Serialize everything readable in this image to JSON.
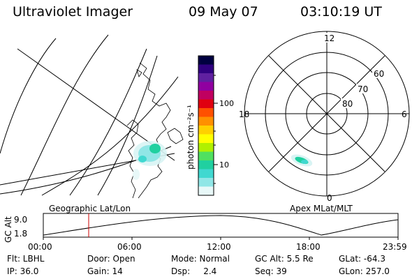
{
  "header": {
    "instrument": "Ultraviolet Imager",
    "date": "09 May 07",
    "time": "03:10:19 UT"
  },
  "colorbar": {
    "label": "photon cm⁻²s⁻¹",
    "ticks": [
      "100",
      "10"
    ],
    "colors": [
      "#000040",
      "#300080",
      "#6020a0",
      "#9000a0",
      "#c00060",
      "#e00010",
      "#ff5000",
      "#ff9000",
      "#ffd000",
      "#ffff00",
      "#b0f000",
      "#50e060",
      "#20d0a0",
      "#40d8d0",
      "#90e6e6",
      "#e8f8f8"
    ]
  },
  "polar_plot": {
    "mlt_labels": {
      "top": "12",
      "left": "18",
      "right": "6",
      "bottom": "0"
    },
    "mlat_labels": [
      "60",
      "70",
      "80"
    ]
  },
  "timeline": {
    "left_label": "Geographic Lat/Lon",
    "right_label": "Apex MLat/MLT",
    "axis_title": "GC Alt",
    "y_ticks": [
      "9.0",
      "1.8"
    ],
    "x_ticks": [
      "00:00",
      "06:00",
      "12:00",
      "18:00",
      "23:59"
    ],
    "current_marker_time": "03:10"
  },
  "footer": {
    "row1": [
      "Flt: LBHL",
      "Door: Open",
      "Mode: Normal",
      "GC Alt: 5.5 Re",
      "GLat: -64.3"
    ],
    "row2": [
      "IP: 36.0",
      "Gain: 14",
      "Dsp:     2.4",
      "Seq: 39",
      "GLon: 257.0"
    ]
  },
  "colors": {
    "marker": "#cc0000",
    "foreground": "#000000",
    "background": "#ffffff"
  }
}
